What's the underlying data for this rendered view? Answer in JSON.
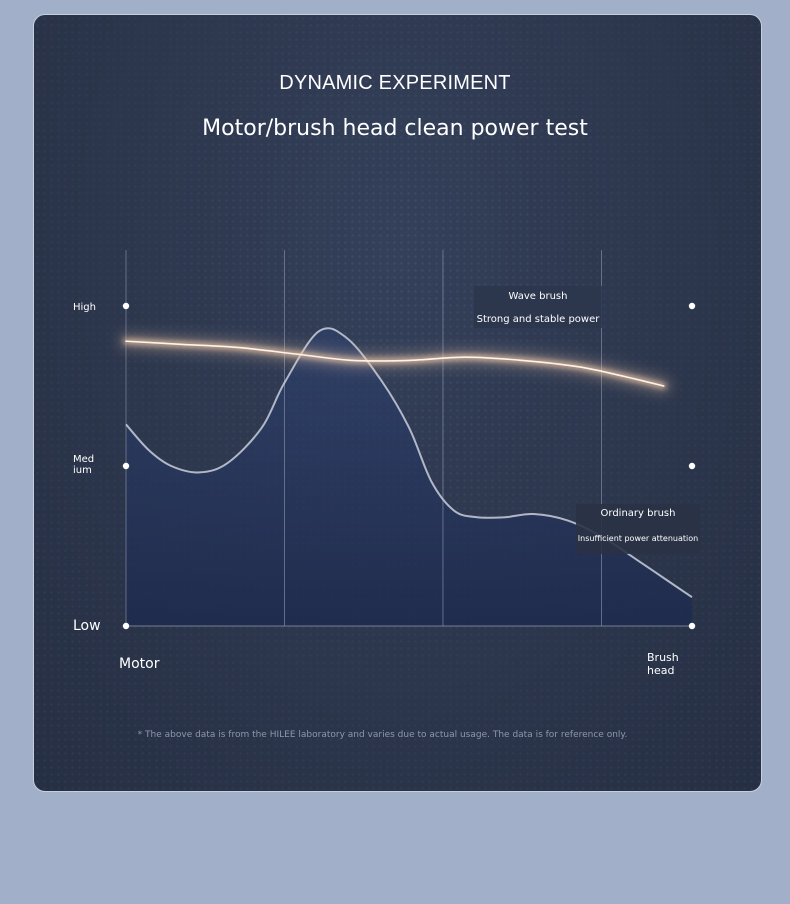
{
  "heading": {
    "title": "DYNAMIC EXPERIMENT",
    "subtitle": "Motor/brush head clean power test"
  },
  "chart_data": {
    "type": "line",
    "title": "Motor/brush head clean power test",
    "xlabel_start": "Motor",
    "xlabel_end": [
      "Brush",
      "head"
    ],
    "y_levels": [
      {
        "label": [
          "Low"
        ],
        "value": 0
      },
      {
        "label": [
          "Med",
          "ium"
        ],
        "value": 0.5
      },
      {
        "label": [
          "High"
        ],
        "value": 1
      }
    ],
    "xlim": [
      0,
      1
    ],
    "ylim": [
      0,
      1
    ],
    "vertical_grid": [
      0,
      0.28,
      0.56,
      0.84
    ],
    "grid": true,
    "series": [
      {
        "name": "Wave brush",
        "description": "Strong and stable power",
        "color": "#f0c9a8",
        "x": [
          0,
          0.1,
          0.2,
          0.3,
          0.4,
          0.5,
          0.6,
          0.7,
          0.8,
          0.88,
          0.95
        ],
        "y": [
          0.89,
          0.88,
          0.87,
          0.85,
          0.83,
          0.83,
          0.84,
          0.83,
          0.81,
          0.78,
          0.75
        ]
      },
      {
        "name": "Ordinary brush",
        "description": "Insufficient power attenuation",
        "color": "#c9cedb",
        "x": [
          0,
          0.04,
          0.08,
          0.13,
          0.18,
          0.24,
          0.28,
          0.34,
          0.39,
          0.45,
          0.5,
          0.54,
          0.58,
          0.62,
          0.67,
          0.72,
          0.78,
          0.84,
          0.9,
          0.95,
          1.0
        ],
        "y": [
          0.63,
          0.55,
          0.5,
          0.48,
          0.51,
          0.62,
          0.76,
          0.92,
          0.9,
          0.77,
          0.62,
          0.45,
          0.36,
          0.34,
          0.34,
          0.35,
          0.33,
          0.28,
          0.21,
          0.15,
          0.09
        ]
      }
    ]
  },
  "footnote": "* The above data is from the HILEE laboratory and varies due to actual usage. The data is for reference only."
}
